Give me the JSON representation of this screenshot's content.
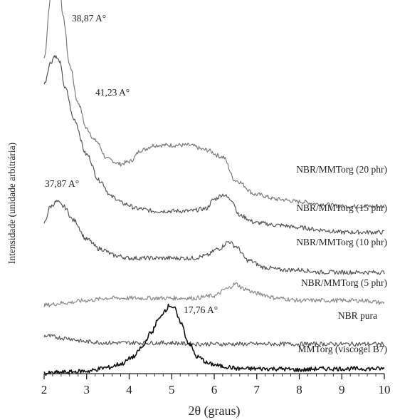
{
  "chart_data": {
    "type": "line",
    "title": "",
    "xlabel": "2θ (graus)",
    "ylabel": "Intensidade (unidade arbitrária)",
    "xlim": [
      2,
      10
    ],
    "xticks": [
      "2",
      "3",
      "4",
      "5",
      "6",
      "7",
      "8",
      "9",
      "10"
    ],
    "y_ticks_shown": false,
    "grid": false,
    "legend": "none (series labeled inline at right)",
    "series": [
      {
        "name": "NBR/MMTorg (20 phr)",
        "color": "#7a7a7a",
        "points": [
          [
            2.0,
            1.05
          ],
          [
            2.15,
            1.3
          ],
          [
            2.25,
            1.42
          ],
          [
            2.35,
            1.4
          ],
          [
            2.45,
            1.22
          ],
          [
            2.6,
            1.02
          ],
          [
            2.8,
            0.86
          ],
          [
            3.0,
            0.75
          ],
          [
            3.2,
            0.7
          ],
          [
            3.5,
            0.62
          ],
          [
            3.8,
            0.6
          ],
          [
            4.0,
            0.61
          ],
          [
            4.3,
            0.66
          ],
          [
            4.6,
            0.68
          ],
          [
            5.0,
            0.68
          ],
          [
            5.4,
            0.68
          ],
          [
            5.8,
            0.66
          ],
          [
            6.2,
            0.63
          ],
          [
            6.5,
            0.53
          ],
          [
            7.0,
            0.47
          ],
          [
            7.5,
            0.45
          ],
          [
            8.0,
            0.44
          ],
          [
            8.5,
            0.43
          ],
          [
            9.0,
            0.42
          ],
          [
            9.5,
            0.42
          ],
          [
            10.0,
            0.42
          ]
        ],
        "annotation": "38,87 A°"
      },
      {
        "name": "NBR/MMTorg (15 phr)",
        "color": "#555555",
        "points": [
          [
            2.0,
            0.94
          ],
          [
            2.15,
            1.03
          ],
          [
            2.25,
            1.06
          ],
          [
            2.35,
            1.04
          ],
          [
            2.5,
            0.92
          ],
          [
            2.7,
            0.79
          ],
          [
            3.0,
            0.64
          ],
          [
            3.3,
            0.53
          ],
          [
            3.6,
            0.46
          ],
          [
            3.9,
            0.43
          ],
          [
            4.2,
            0.41
          ],
          [
            4.6,
            0.4
          ],
          [
            5.0,
            0.4
          ],
          [
            5.4,
            0.4
          ],
          [
            5.8,
            0.41
          ],
          [
            6.0,
            0.45
          ],
          [
            6.2,
            0.47
          ],
          [
            6.4,
            0.45
          ],
          [
            6.6,
            0.38
          ],
          [
            7.0,
            0.35
          ],
          [
            7.5,
            0.34
          ],
          [
            8.0,
            0.33
          ],
          [
            8.5,
            0.32
          ],
          [
            9.0,
            0.31
          ],
          [
            9.5,
            0.31
          ],
          [
            10.0,
            0.31
          ]
        ],
        "annotation": "41,23 A°"
      },
      {
        "name": "NBR/MMTorg (10 phr)",
        "color": "#555555",
        "points": [
          [
            2.0,
            0.35
          ],
          [
            2.15,
            0.42
          ],
          [
            2.3,
            0.44
          ],
          [
            2.45,
            0.42
          ],
          [
            2.7,
            0.36
          ],
          [
            3.0,
            0.28
          ],
          [
            3.3,
            0.24
          ],
          [
            3.7,
            0.21
          ],
          [
            4.0,
            0.2
          ],
          [
            4.5,
            0.2
          ],
          [
            5.0,
            0.2
          ],
          [
            5.5,
            0.2
          ],
          [
            5.8,
            0.21
          ],
          [
            6.1,
            0.24
          ],
          [
            6.35,
            0.27
          ],
          [
            6.5,
            0.25
          ],
          [
            6.8,
            0.19
          ],
          [
            7.2,
            0.16
          ],
          [
            7.6,
            0.15
          ],
          [
            8.0,
            0.15
          ],
          [
            8.5,
            0.14
          ],
          [
            9.0,
            0.14
          ],
          [
            9.5,
            0.14
          ],
          [
            10.0,
            0.14
          ]
        ],
        "annotation": "37,87 A°"
      },
      {
        "name": "NBR/MMTorg (5 phr)",
        "color": "#8a8a8a",
        "points": [
          [
            2.0,
            0.0
          ],
          [
            2.5,
            0.01
          ],
          [
            3.0,
            0.02
          ],
          [
            3.5,
            0.03
          ],
          [
            4.0,
            0.03
          ],
          [
            4.5,
            0.03
          ],
          [
            5.0,
            0.03
          ],
          [
            5.5,
            0.03
          ],
          [
            6.0,
            0.04
          ],
          [
            6.3,
            0.07
          ],
          [
            6.5,
            0.09
          ],
          [
            6.7,
            0.07
          ],
          [
            7.0,
            0.05
          ],
          [
            7.5,
            0.03
          ],
          [
            8.0,
            0.02
          ],
          [
            8.5,
            0.02
          ],
          [
            9.0,
            0.02
          ],
          [
            9.5,
            0.02
          ],
          [
            10.0,
            0.01
          ]
        ]
      },
      {
        "name": "NBR pura",
        "color": "#555555",
        "points": [
          [
            2.0,
            -0.13
          ],
          [
            2.5,
            -0.14
          ],
          [
            3.0,
            -0.155
          ],
          [
            3.5,
            -0.16
          ],
          [
            4.0,
            -0.16
          ],
          [
            4.5,
            -0.16
          ],
          [
            5.0,
            -0.16
          ],
          [
            5.5,
            -0.165
          ],
          [
            6.0,
            -0.165
          ],
          [
            6.5,
            -0.165
          ],
          [
            7.0,
            -0.165
          ],
          [
            7.5,
            -0.165
          ],
          [
            8.0,
            -0.165
          ],
          [
            8.5,
            -0.165
          ],
          [
            9.0,
            -0.165
          ],
          [
            9.5,
            -0.165
          ],
          [
            10.0,
            -0.165
          ]
        ]
      },
      {
        "name": "MMTorg (viscogel B7)",
        "color": "#111111",
        "points": [
          [
            2.0,
            -0.29
          ],
          [
            2.5,
            -0.285
          ],
          [
            3.0,
            -0.28
          ],
          [
            3.5,
            -0.265
          ],
          [
            3.8,
            -0.25
          ],
          [
            4.1,
            -0.22
          ],
          [
            4.3,
            -0.18
          ],
          [
            4.5,
            -0.12
          ],
          [
            4.7,
            -0.06
          ],
          [
            4.85,
            -0.02
          ],
          [
            4.95,
            0.0
          ],
          [
            5.05,
            -0.01
          ],
          [
            5.2,
            -0.07
          ],
          [
            5.4,
            -0.16
          ],
          [
            5.6,
            -0.22
          ],
          [
            5.9,
            -0.25
          ],
          [
            6.2,
            -0.26
          ],
          [
            6.6,
            -0.27
          ],
          [
            7.0,
            -0.27
          ],
          [
            7.5,
            -0.27
          ],
          [
            8.0,
            -0.275
          ],
          [
            8.5,
            -0.27
          ],
          [
            9.0,
            -0.27
          ],
          [
            9.5,
            -0.27
          ],
          [
            10.0,
            -0.27
          ]
        ],
        "annotation": "17,76 A°"
      }
    ]
  }
}
